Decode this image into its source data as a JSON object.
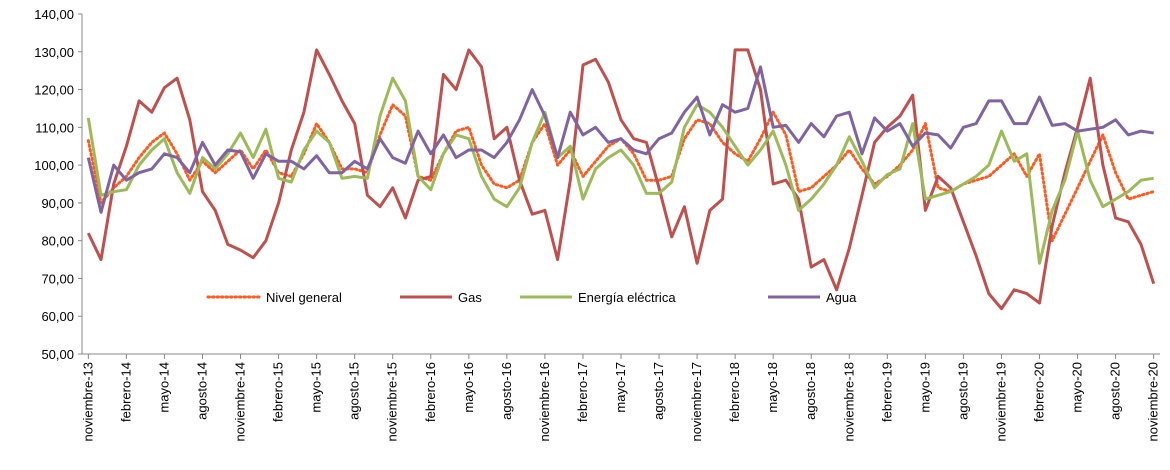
{
  "chart_data": {
    "type": "line",
    "categories": [
      "noviembre-13",
      null,
      null,
      "febrero-14",
      null,
      null,
      "mayo-14",
      null,
      null,
      "agosto-14",
      null,
      null,
      "noviembre-14",
      null,
      null,
      "febrero-15",
      null,
      null,
      "mayo-15",
      null,
      null,
      "agosto-15",
      null,
      null,
      "noviembre-15",
      null,
      null,
      "febrero-16",
      null,
      null,
      "mayo-16",
      null,
      null,
      "agosto-16",
      null,
      null,
      "noviembre-16",
      null,
      null,
      "febrero-17",
      null,
      null,
      "mayo-17",
      null,
      null,
      "agosto-17",
      null,
      null,
      "noviembre-17",
      null,
      null,
      "febrero-18",
      null,
      null,
      "mayo-18",
      null,
      null,
      "agosto-18",
      null,
      null,
      "noviembre-18",
      null,
      null,
      "febrero-19",
      null,
      null,
      "mayo-19",
      null,
      null,
      "agosto-19",
      null,
      null,
      "noviembre-19",
      null,
      null,
      "febrero-20",
      null,
      null,
      "mayo-20",
      null,
      null,
      "agosto-20",
      null,
      null,
      "noviembre-20"
    ],
    "series": [
      {
        "name": "Nivel general",
        "color": "#ff5a1f",
        "style": "dotted",
        "values": [
          106.5,
          90,
          94,
          97,
          102,
          106,
          108.5,
          103,
          96,
          101,
          98,
          101,
          104,
          99,
          104,
          98,
          97,
          103,
          111,
          106,
          99,
          99,
          98,
          108,
          116,
          113,
          97,
          96,
          103,
          109,
          110,
          100,
          95,
          94,
          96,
          106,
          111,
          100,
          104,
          97,
          101,
          105,
          107,
          103,
          96,
          96,
          97,
          107,
          112,
          111,
          106,
          103,
          101,
          107,
          114,
          108,
          93,
          94,
          97,
          100,
          104,
          99,
          95,
          97,
          100,
          104,
          111,
          94,
          93,
          95,
          96,
          97,
          100,
          103,
          97,
          103,
          80,
          87,
          94,
          101,
          108,
          98,
          91,
          92,
          93
        ]
      },
      {
        "name": "Gas",
        "color": "#c0504d",
        "values": [
          82,
          75,
          95,
          105,
          117,
          114,
          120.5,
          123,
          112,
          93,
          88,
          79,
          77.5,
          75.5,
          80,
          90,
          104,
          114,
          130.5,
          124,
          117,
          111,
          92,
          89,
          94,
          86,
          96,
          97,
          124,
          120,
          130.5,
          126,
          107,
          110,
          96,
          87,
          88,
          75,
          96,
          126.5,
          128,
          122,
          112,
          107,
          106,
          94,
          81,
          89,
          74,
          88,
          91,
          130.5,
          130.5,
          120,
          95,
          96,
          91,
          73,
          75,
          67,
          78,
          92,
          106,
          110,
          113,
          118.5,
          88,
          97,
          94,
          85,
          76,
          66,
          62,
          67,
          66,
          63.5,
          84,
          98,
          110,
          123,
          100,
          86,
          85,
          79,
          68.6
        ]
      },
      {
        "name": "Energía eléctrica",
        "color": "#9bbb59",
        "values": [
          112.5,
          92,
          93,
          93.5,
          100,
          104,
          107,
          98,
          92.5,
          102,
          99,
          103,
          108.5,
          102,
          109.5,
          96.5,
          95.5,
          104,
          109,
          106,
          96.5,
          97,
          96.5,
          113,
          123,
          117,
          97,
          93.5,
          103,
          108,
          107,
          97,
          91,
          89,
          94,
          106,
          114,
          102,
          105,
          91,
          99,
          102,
          104,
          100,
          92.5,
          92.5,
          95.5,
          110,
          116,
          114,
          110,
          105,
          100,
          104,
          109,
          100,
          88,
          91,
          95,
          100,
          107.5,
          101,
          94,
          97.5,
          99,
          111,
          91,
          92,
          93,
          95,
          97,
          100,
          109,
          101,
          103,
          74,
          88,
          96,
          109,
          96,
          89,
          91,
          93,
          96,
          96.5
        ]
      },
      {
        "name": "Agua",
        "color": "#8064a2",
        "values": [
          102,
          87.5,
          100,
          96,
          98,
          99,
          103,
          102,
          98,
          106,
          100,
          104,
          103.5,
          96.5,
          103,
          101,
          101,
          99,
          102.5,
          98,
          98,
          101,
          99,
          107,
          102,
          100.5,
          109,
          103,
          108,
          102,
          104,
          104,
          102,
          106,
          112,
          120,
          113,
          102,
          114,
          108,
          110,
          106,
          107,
          104,
          103,
          107,
          108.5,
          114,
          118,
          108,
          116,
          114,
          115,
          126,
          110,
          110.5,
          106,
          111,
          107.5,
          113,
          114,
          103,
          112.5,
          109,
          111,
          105,
          108.5,
          108,
          104.5,
          110,
          111,
          117,
          117,
          111,
          111,
          118,
          110.5,
          111,
          109,
          109.5,
          110,
          112,
          108,
          109,
          108.5
        ]
      }
    ],
    "ylim": [
      50,
      140
    ],
    "yticks": [
      {
        "value": 50,
        "label": "50,00"
      },
      {
        "value": 60,
        "label": "60,00"
      },
      {
        "value": 70,
        "label": "70,00"
      },
      {
        "value": 80,
        "label": "80,00"
      },
      {
        "value": 90,
        "label": "90,00"
      },
      {
        "value": 100,
        "label": "100,00"
      },
      {
        "value": 110,
        "label": "110,00"
      },
      {
        "value": 120,
        "label": "120,00"
      },
      {
        "value": 130,
        "label": "130,00"
      },
      {
        "value": 140,
        "label": "140,00"
      }
    ],
    "grid": false
  }
}
